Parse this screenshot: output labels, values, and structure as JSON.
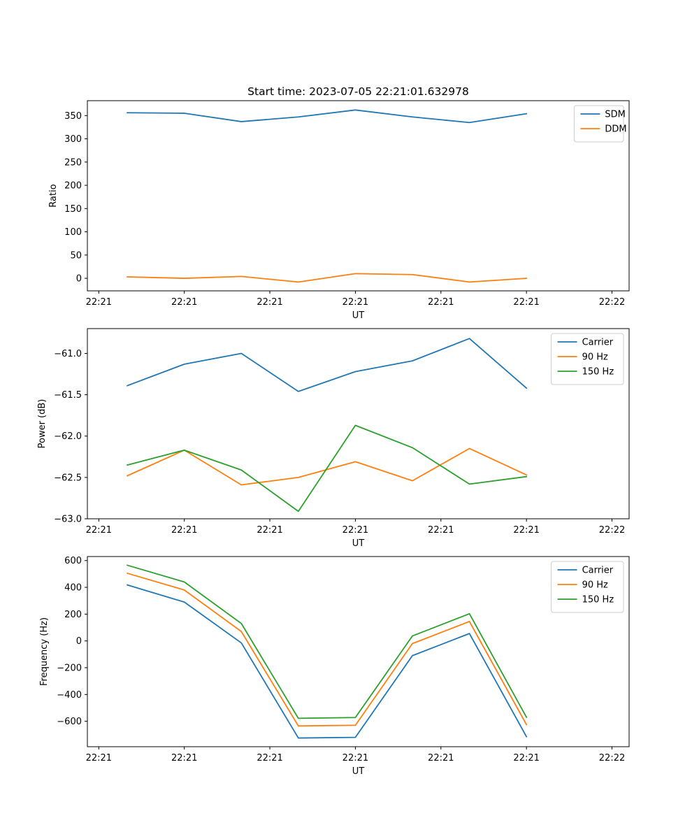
{
  "chart_data": [
    {
      "type": "line",
      "title": "Start time: 2023-07-05 22:21:01.632978",
      "xlabel": "UT",
      "ylabel": "Ratio",
      "x": [
        1,
        2,
        3,
        4,
        5,
        6,
        7,
        8
      ],
      "xlim": [
        0.3,
        9.8
      ],
      "x_ticks": [
        {
          "pos": 0.5,
          "label": "22:21"
        },
        {
          "pos": 2.0,
          "label": "22:21"
        },
        {
          "pos": 3.5,
          "label": "22:21"
        },
        {
          "pos": 5.0,
          "label": "22:21"
        },
        {
          "pos": 6.5,
          "label": "22:21"
        },
        {
          "pos": 8.0,
          "label": "22:21"
        },
        {
          "pos": 9.5,
          "label": "22:22"
        }
      ],
      "ylim": [
        -27,
        382
      ],
      "y_ticks": [
        0,
        50,
        100,
        150,
        200,
        250,
        300,
        350
      ],
      "legend_position": "upper-right",
      "series": [
        {
          "name": "SDM",
          "color": "#1f77b4",
          "values": [
            356,
            355,
            337,
            347,
            362,
            347,
            335,
            354
          ]
        },
        {
          "name": "DDM",
          "color": "#ff7f0e",
          "values": [
            3,
            0,
            4,
            -8,
            10,
            8,
            -8,
            0
          ]
        }
      ]
    },
    {
      "type": "line",
      "title": "",
      "xlabel": "UT",
      "ylabel": "Power (dB)",
      "x": [
        1,
        2,
        3,
        4,
        5,
        6,
        7,
        8
      ],
      "xlim": [
        0.3,
        9.8
      ],
      "x_ticks": [
        {
          "pos": 0.5,
          "label": "22:21"
        },
        {
          "pos": 2.0,
          "label": "22:21"
        },
        {
          "pos": 3.5,
          "label": "22:21"
        },
        {
          "pos": 5.0,
          "label": "22:21"
        },
        {
          "pos": 6.5,
          "label": "22:21"
        },
        {
          "pos": 8.0,
          "label": "22:21"
        },
        {
          "pos": 9.5,
          "label": "22:22"
        }
      ],
      "ylim": [
        -63.0,
        -60.7
      ],
      "y_ticks": [
        -63.0,
        -62.5,
        -62.0,
        -61.5,
        -61.0
      ],
      "y_tick_labels": [
        "−63.0",
        "−62.5",
        "−62.0",
        "−61.5",
        "−61.0"
      ],
      "legend_position": "upper-right",
      "series": [
        {
          "name": "Carrier",
          "color": "#1f77b4",
          "values": [
            -61.39,
            -61.13,
            -61.0,
            -61.46,
            -61.22,
            -61.09,
            -60.82,
            -61.42
          ]
        },
        {
          "name": "90 Hz",
          "color": "#ff7f0e",
          "values": [
            -62.48,
            -62.17,
            -62.59,
            -62.5,
            -62.31,
            -62.54,
            -62.15,
            -62.47
          ]
        },
        {
          "name": "150 Hz",
          "color": "#2ca02c",
          "values": [
            -62.35,
            -62.17,
            -62.41,
            -62.91,
            -61.87,
            -62.14,
            -62.58,
            -62.49
          ]
        }
      ]
    },
    {
      "type": "line",
      "title": "",
      "xlabel": "UT",
      "ylabel": "Frequency (Hz)",
      "x": [
        1,
        2,
        3,
        4,
        5,
        6,
        7,
        8
      ],
      "xlim": [
        0.3,
        9.8
      ],
      "x_ticks": [
        {
          "pos": 0.5,
          "label": "22:21"
        },
        {
          "pos": 2.0,
          "label": "22:21"
        },
        {
          "pos": 3.5,
          "label": "22:21"
        },
        {
          "pos": 5.0,
          "label": "22:21"
        },
        {
          "pos": 6.5,
          "label": "22:21"
        },
        {
          "pos": 8.0,
          "label": "22:21"
        },
        {
          "pos": 9.5,
          "label": "22:22"
        }
      ],
      "ylim": [
        -790,
        630
      ],
      "y_ticks": [
        -600,
        -400,
        -200,
        0,
        200,
        400,
        600
      ],
      "y_tick_labels": [
        "−600",
        "−400",
        "−200",
        "0",
        "200",
        "400",
        "600"
      ],
      "legend_position": "upper-right",
      "series": [
        {
          "name": "Carrier",
          "color": "#1f77b4",
          "values": [
            418,
            290,
            -15,
            -725,
            -720,
            -110,
            55,
            -715
          ]
        },
        {
          "name": "90 Hz",
          "color": "#ff7f0e",
          "values": [
            505,
            380,
            70,
            -635,
            -630,
            -20,
            145,
            -625
          ]
        },
        {
          "name": "150 Hz",
          "color": "#2ca02c",
          "values": [
            565,
            440,
            130,
            -578,
            -572,
            37,
            203,
            -570
          ]
        }
      ]
    }
  ]
}
